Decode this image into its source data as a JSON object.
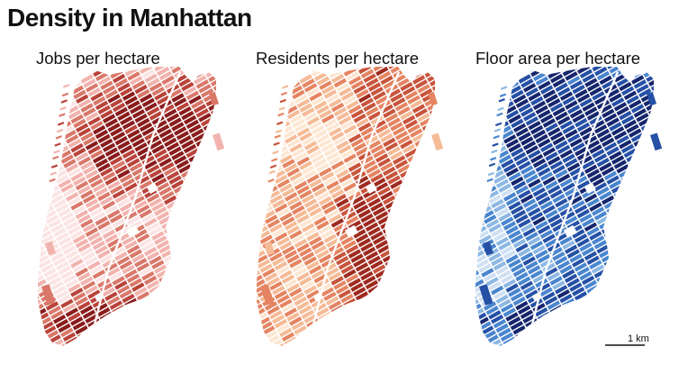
{
  "title": "Density in Manhattan",
  "panels": [
    {
      "title": "Jobs per hectare",
      "ramp": [
        "#fbe4e4",
        "#f2b3ae",
        "#d9786a",
        "#b9433a",
        "#8a1c1c"
      ]
    },
    {
      "title": "Residents per hectare",
      "ramp": [
        "#fde7d3",
        "#f5bb97",
        "#e58462",
        "#c8543c",
        "#9e2a1f"
      ]
    },
    {
      "title": "Floor area per hectare",
      "ramp": [
        "#cfe0f3",
        "#8db8e3",
        "#4a86cf",
        "#2550a6",
        "#16266d"
      ]
    }
  ],
  "scale_bar": {
    "label": "1 km",
    "km": 1
  }
}
